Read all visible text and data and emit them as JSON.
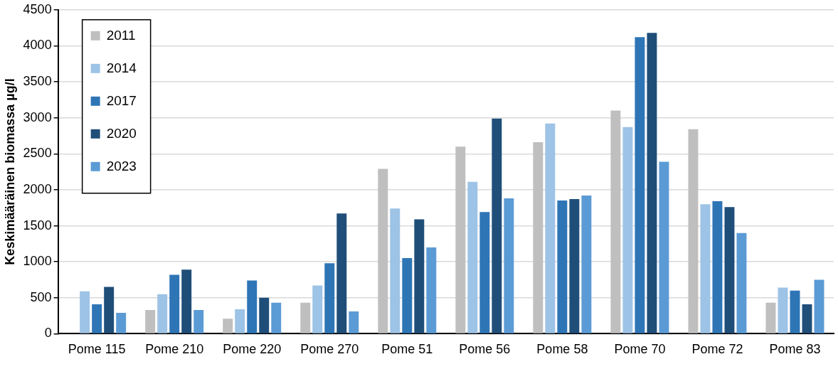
{
  "chart_data": {
    "type": "bar",
    "ylabel": "Keskimääräinen biomassa µg/l",
    "categories": [
      "Pome 115",
      "Pome 210",
      "Pome 220",
      "Pome 270",
      "Pome 51",
      "Pome 56",
      "Pome 58",
      "Pome 70",
      "Pome 72",
      "Pome 83"
    ],
    "series": [
      {
        "name": "2011",
        "color": "#bfbfbf",
        "values": [
          null,
          330,
          210,
          430,
          2290,
          2600,
          2660,
          3100,
          2840,
          430
        ]
      },
      {
        "name": "2014",
        "color": "#9dc3e6",
        "values": [
          590,
          550,
          340,
          670,
          1740,
          2110,
          2920,
          2870,
          1800,
          640
        ]
      },
      {
        "name": "2017",
        "color": "#2e75b6",
        "values": [
          410,
          820,
          740,
          980,
          1050,
          1690,
          1850,
          4120,
          1840,
          600
        ]
      },
      {
        "name": "2020",
        "color": "#1f4e79",
        "values": [
          650,
          890,
          500,
          1670,
          1590,
          2990,
          1870,
          4180,
          1760,
          410
        ]
      },
      {
        "name": "2023",
        "color": "#5b9bd5",
        "values": [
          290,
          330,
          430,
          310,
          1200,
          1880,
          1920,
          2390,
          1400,
          750
        ]
      }
    ],
    "ylim": [
      0,
      4500
    ],
    "yticks": [
      0,
      500,
      1000,
      1500,
      2000,
      2500,
      3000,
      3500,
      4000,
      4500
    ],
    "grid": "y",
    "legend": "top left"
  }
}
